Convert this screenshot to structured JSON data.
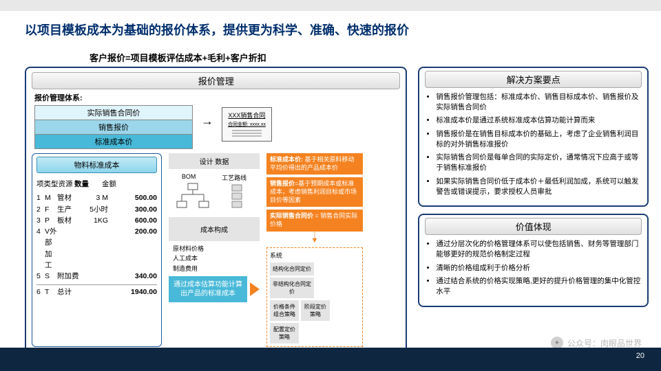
{
  "title": "以项目模板成本为基础的报价体系，提供更为科学、准确、快速的报价",
  "formula": "客户报价=项目模板评估成本+毛利+客户折扣",
  "left": {
    "header": "报价管理",
    "sys_label": "报价管理体系:",
    "layers": {
      "actual": "实际销售合同价",
      "sale": "销售报价",
      "std": "标准成本价"
    },
    "contract": {
      "title": "XXX销售合同",
      "amt": "合同金额: xxxx.xx"
    },
    "mat": {
      "header": "物料标准成本",
      "col1": "项类型资源",
      "col2": "数量",
      "col3": "金额",
      "rows": [
        {
          "n": "1",
          "c": "M",
          "r": "管材",
          "q": "3 M",
          "a": "500.00"
        },
        {
          "n": "2",
          "c": "F",
          "r": "生产",
          "q": "5小时",
          "a": "300.00"
        },
        {
          "n": "3",
          "c": "P",
          "r": "板材",
          "q": "1KG",
          "a": "600.00"
        },
        {
          "n": "4",
          "c": "V外部加工",
          "r": "",
          "q": "",
          "a": "200.00"
        },
        {
          "n": "5",
          "c": "S",
          "r": "附加费",
          "q": "",
          "a": "340.00"
        }
      ],
      "total": {
        "n": "6",
        "c": "T",
        "r": "总计",
        "a": "1940.00"
      }
    },
    "mid": {
      "design": "设计  数据",
      "bom": "BOM",
      "route": "工艺路线",
      "cost": "成本构成",
      "c1": "原材料价格",
      "c2": "人工成本",
      "c3": "制造费用",
      "out": "通过成本估算功能计算出产品的标准成本"
    },
    "sys": {
      "o1t": "标准成本价:",
      "o1": " 基于相关原料移动平均价得出的产品成本价",
      "o2t": "销售报价",
      "o2": "=基于预期成本或标准成本，考虑销售利润目标或市场目价等因素",
      "o3t": "实际销售合同价",
      "o3": " = 销售合同实际价格",
      "sys_t": "系统",
      "g1": "结构化合同定价",
      "g2": "非结构化合同定价",
      "g3": "价格条件组合策略",
      "g4": "阶段定价策略",
      "g5": "配置定价策略"
    }
  },
  "right": {
    "h1": "解决方案要点",
    "list1": [
      "销售报价管理包括：标准成本价、销售目标成本价、销售报价及实际销售合同价",
      "标准成本价是通过系统标准成本估算功能计算而来",
      "销售报价是在销售目标成本价的基础上，考虑了企业销售利润目标的对外销售标准报价",
      "实际销售合同价是每单合同的实际定价，通常情况下应高于或等于销售标准报价",
      "如果实际销售合同价低于成本价＋最低利润加成，系统可以触发警告或错误提示，要求授权人员审批"
    ],
    "h2": "价值体现",
    "list2": [
      "通过分层次化的价格管理体系可以使包括销售、财务等管理部门能够更好的规范价格制定过程",
      "清晰的价格组成利于价格分析",
      "通过结合系统的价格实现策略,更好的提升价格管理的集中化管控水平"
    ]
  },
  "page": "20",
  "wm": "公众号：肉眼品世界"
}
